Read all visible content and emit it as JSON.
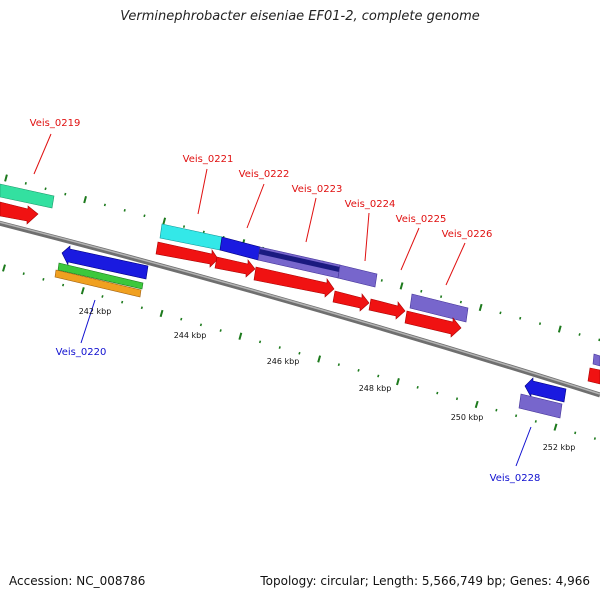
{
  "title": "Verminephrobacter eiseniae EF01-2, complete genome",
  "footer": {
    "accession": "Accession: NC_008786",
    "summary": "Topology: circular; Length: 5,566,749 bp; Genes: 4,966"
  },
  "colors": {
    "backbone": "#8a8a8a",
    "tick": "#1d7a1d",
    "label_top": "#e01010",
    "label_bottom": "#1010d0"
  },
  "scale_labels": [
    "242 kbp",
    "244 kbp",
    "246 kbp",
    "248 kbp",
    "250 kbp",
    "252 kbp"
  ],
  "gene_labels": {
    "g0219": "Veis_0219",
    "g0220": "Veis_0220",
    "g0221": "Veis_0221",
    "g0222": "Veis_0222",
    "g0223": "Veis_0223",
    "g0224": "Veis_0224",
    "g0225": "Veis_0225",
    "g0226": "Veis_0226",
    "g0228": "Veis_0228"
  }
}
